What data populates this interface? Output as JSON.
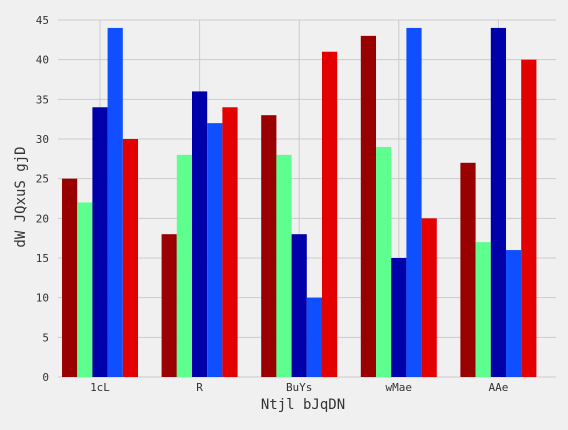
{
  "chart_data": {
    "type": "bar",
    "title": "",
    "xlabel": "Ntjl bJqDN",
    "ylabel": "dW JQxuS gjD",
    "categories": [
      "1cL",
      "R",
      "BuYs",
      "wMae",
      "AAe"
    ],
    "ylim": [
      0,
      45
    ],
    "yticks": [
      0,
      5,
      10,
      15,
      20,
      25,
      30,
      35,
      40,
      45
    ],
    "grid": true,
    "series": [
      {
        "values": [
          25,
          18,
          33,
          43,
          27
        ],
        "color": "#990000"
      },
      {
        "values": [
          22,
          28,
          28,
          29,
          17
        ],
        "color": "#5eff8e"
      },
      {
        "values": [
          34,
          36,
          18,
          15,
          44
        ],
        "color": "#0000aa"
      },
      {
        "values": [
          44,
          32,
          10,
          44,
          16
        ],
        "color": "#0f4fff"
      },
      {
        "values": [
          30,
          34,
          41,
          20,
          40
        ],
        "color": "#e30000"
      }
    ],
    "colors": {
      "background": "#f0f0f0",
      "grid": "#cbcbcb",
      "text": "#333333"
    }
  }
}
